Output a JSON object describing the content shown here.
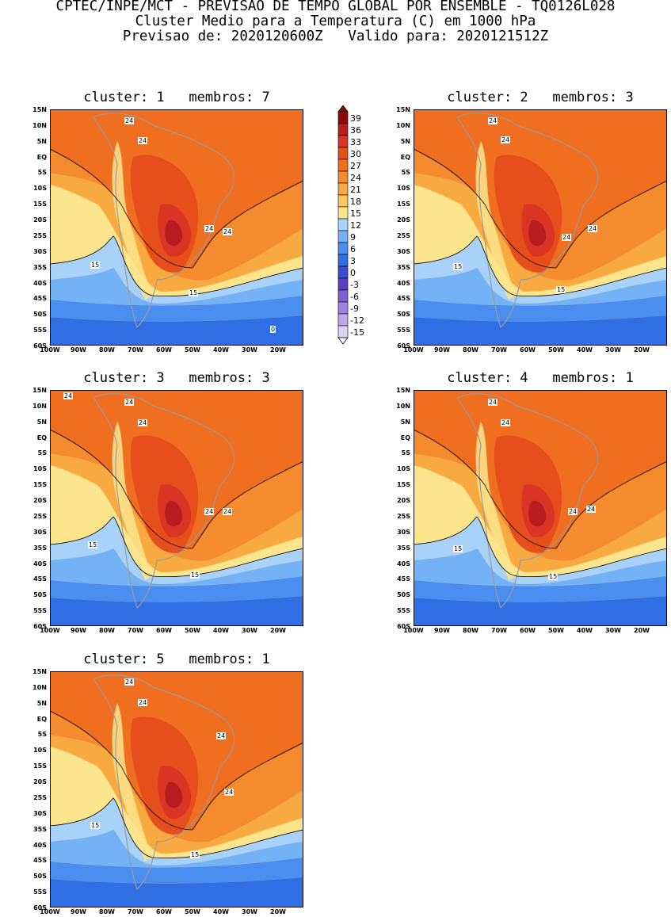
{
  "header": {
    "line1": "CPTEC/INPE/MCT - PREVISAO DE TEMPO GLOBAL POR ENSEMBLE - TQ0126L028",
    "line2": "Cluster Medio para a Temperatura (C) em 1000 hPa",
    "line3": "Previsao de: 2020120600Z   Valido para: 2020121512Z"
  },
  "y_ticks": [
    "15N",
    "10N",
    "5N",
    "EQ",
    "5S",
    "10S",
    "15S",
    "20S",
    "25S",
    "30S",
    "35S",
    "40S",
    "45S",
    "50S",
    "55S",
    "60S"
  ],
  "x_ticks": [
    "100W",
    "90W",
    "80W",
    "70W",
    "60W",
    "50W",
    "40W",
    "30W",
    "20W"
  ],
  "colorbar": {
    "labels": [
      "39",
      "36",
      "33",
      "30",
      "27",
      "24",
      "21",
      "18",
      "15",
      "12",
      "9",
      "6",
      "3",
      "0",
      "-3",
      "-6",
      "-9",
      "-12",
      "-15"
    ],
    "colors": [
      "#8b0a0a",
      "#b81c1c",
      "#d83525",
      "#e64f1c",
      "#f06e1f",
      "#f48c2f",
      "#f8aa40",
      "#fcc85e",
      "#fde58d",
      "#a9d2fa",
      "#74b2f6",
      "#4a8ef0",
      "#2f6fe3",
      "#3b4ccf",
      "#5a3fc4",
      "#7d5fd3",
      "#9b84e0",
      "#bba9ec",
      "#dcd2f6"
    ]
  },
  "clusters": [
    {
      "title": "cluster: 1   membros: 7",
      "labels": [
        "24",
        "24",
        "24",
        "24",
        "15",
        "15",
        "0"
      ]
    },
    {
      "title": "cluster: 2   membros: 3",
      "labels": [
        "24",
        "24",
        "24",
        "24",
        "15",
        "15"
      ]
    },
    {
      "title": "cluster: 3   membros: 3",
      "labels": [
        "24",
        "24",
        "24",
        "24",
        "24",
        "15",
        "15"
      ]
    },
    {
      "title": "cluster: 4   membros: 1",
      "labels": [
        "24",
        "24",
        "24",
        "24",
        "15",
        "15"
      ]
    },
    {
      "title": "cluster: 5   membros: 1",
      "labels": [
        "24",
        "24",
        "24",
        "24",
        "15",
        "15"
      ]
    }
  ]
}
